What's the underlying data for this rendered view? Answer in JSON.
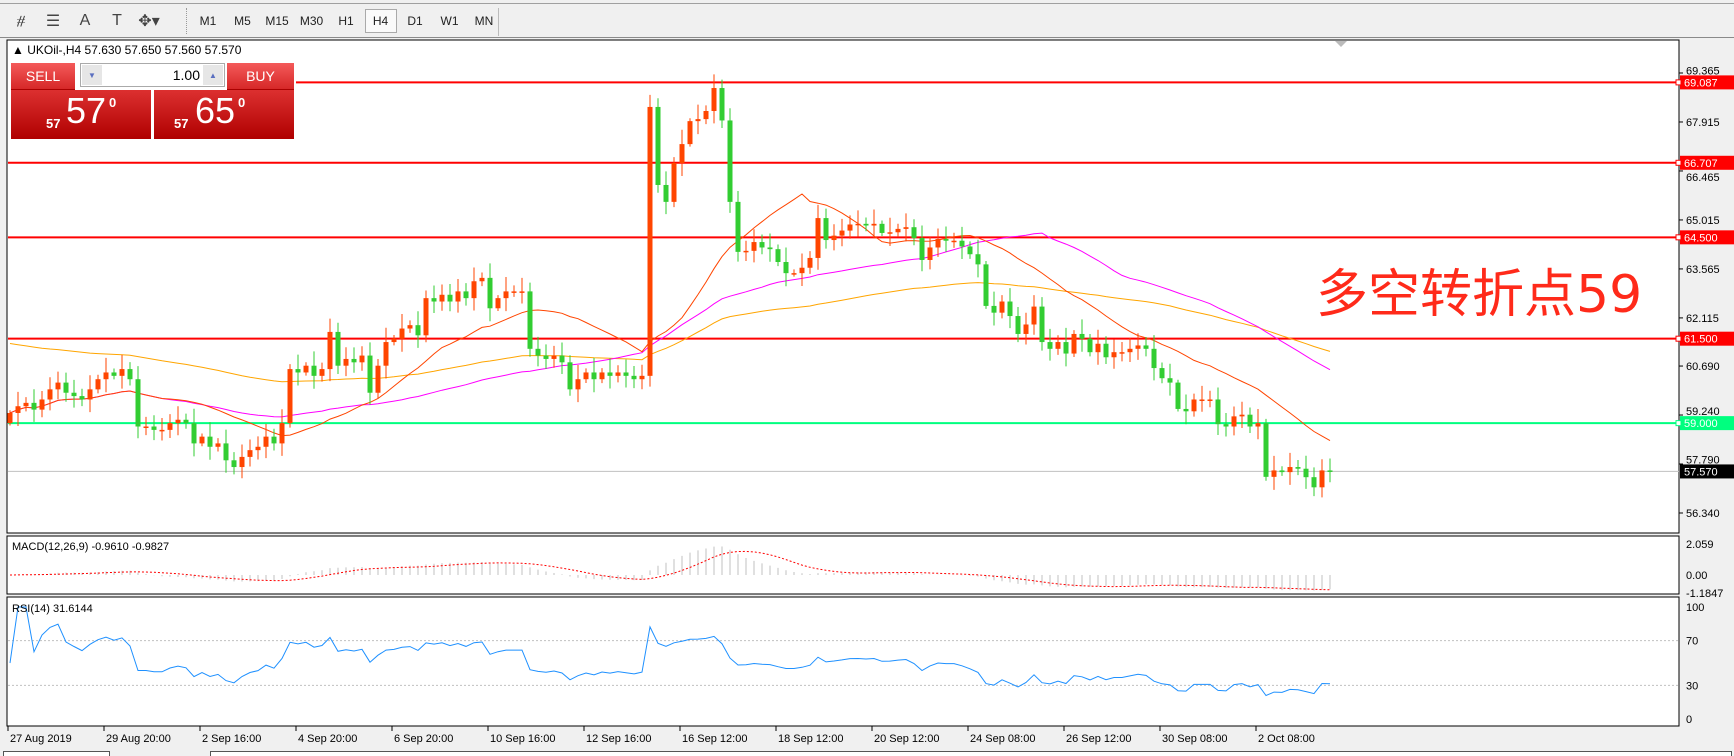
{
  "toolbar": {
    "tools": [
      {
        "name": "elliott-tools-icon",
        "glyph": "⧣"
      },
      {
        "name": "fibonacci-tools-icon",
        "glyph": "☰"
      },
      {
        "name": "text-tool-icon",
        "glyph": "A"
      },
      {
        "name": "text-label-tool-icon",
        "glyph": "T"
      },
      {
        "name": "arrows-tool-icon",
        "glyph": "✥▾"
      }
    ],
    "timeframes": [
      "M1",
      "M5",
      "M15",
      "M30",
      "H1",
      "H4",
      "D1",
      "W1",
      "MN"
    ],
    "active_timeframe": "H4"
  },
  "chart": {
    "header": "▲ UKOil-,H4  57.630 57.650 57.560 57.570",
    "trade_panel": {
      "sell_label": "SELL",
      "buy_label": "BUY",
      "volume": "1.00",
      "sell_price": {
        "prefix": "57",
        "big": "57",
        "sup": "0"
      },
      "buy_price": {
        "prefix": "57",
        "big": "65",
        "sup": "0"
      }
    },
    "annotation": "多空转折点59",
    "price_axis_ticks": [
      "69.365",
      "67.915",
      "66.465",
      "65.015",
      "63.565",
      "62.115",
      "60.690",
      "59.240",
      "57.790",
      "56.340"
    ],
    "levels": [
      {
        "value": "69.087",
        "color": "#ff0000"
      },
      {
        "value": "66.707",
        "color": "#ff0000"
      },
      {
        "value": "64.500",
        "color": "#ff0000"
      },
      {
        "value": "61.500",
        "color": "#ff0000"
      },
      {
        "value": "59.000",
        "color": "#00ff7f"
      }
    ],
    "bid_label": "57.570",
    "time_labels": [
      "27 Aug 2019",
      "29 Aug 20:00",
      "2 Sep 16:00",
      "4 Sep 20:00",
      "6 Sep 20:00",
      "10 Sep 16:00",
      "12 Sep 16:00",
      "16 Sep 12:00",
      "18 Sep 12:00",
      "20 Sep 12:00",
      "24 Sep 08:00",
      "26 Sep 12:00",
      "30 Sep 08:00",
      "2 Oct 08:00"
    ],
    "colors": {
      "bull": "#ff4500",
      "bear": "#32cd32",
      "ma_fast": "#ff4500",
      "ma_mid": "#ff00ff",
      "ma_slow": "#ffa500",
      "rsi": "#1e90ff",
      "macd_signal": "#ff0000",
      "macd_hist": "#c0c0c0"
    }
  },
  "macd": {
    "label": "MACD(12,26,9) -0.9610 -0.9827",
    "axis": [
      "2.059",
      "0.00",
      "-1.1847"
    ]
  },
  "rsi": {
    "label": "RSI(14) 31.6144",
    "axis": [
      "100",
      "70",
      "30",
      "0"
    ]
  },
  "chart_data": {
    "type": "candlestick",
    "symbol": "UKOil-",
    "timeframe": "H4",
    "closes": [
      59.3,
      59.5,
      59.6,
      59.4,
      59.7,
      60.0,
      60.2,
      59.9,
      59.8,
      59.7,
      60.0,
      60.3,
      60.5,
      60.4,
      60.6,
      60.3,
      58.9,
      58.9,
      58.8,
      58.8,
      59.0,
      59.1,
      59.0,
      58.4,
      58.6,
      58.3,
      58.4,
      57.9,
      57.7,
      58.0,
      58.2,
      58.3,
      58.6,
      58.4,
      59.0,
      60.6,
      60.5,
      60.7,
      60.4,
      60.6,
      61.7,
      60.7,
      60.9,
      60.8,
      61.0,
      59.9,
      60.7,
      61.4,
      61.5,
      61.8,
      61.9,
      61.6,
      62.7,
      62.6,
      62.8,
      62.6,
      62.9,
      62.7,
      63.2,
      63.3,
      62.4,
      62.7,
      62.9,
      62.9,
      62.9,
      61.2,
      61.0,
      60.9,
      61.0,
      60.8,
      60.0,
      60.3,
      60.5,
      60.3,
      60.5,
      60.4,
      60.5,
      60.4,
      60.3,
      60.4,
      68.36,
      66.05,
      65.55,
      66.7,
      67.26,
      67.94,
      68.0,
      68.24,
      68.92,
      67.96,
      65.55,
      64.07,
      64.1,
      64.36,
      64.2,
      64.15,
      63.77,
      63.44,
      63.44,
      63.6,
      63.89,
      65.07,
      64.42,
      64.55,
      64.7,
      64.88,
      64.9,
      64.85,
      64.9,
      64.63,
      64.65,
      64.75,
      64.8,
      64.48,
      63.83,
      64.2,
      64.45,
      64.4,
      64.4,
      64.23,
      64.0,
      63.7,
      62.47,
      62.27,
      62.6,
      62.17,
      61.64,
      61.92,
      62.45,
      61.4,
      61.2,
      61.4,
      61.06,
      61.64,
      61.5,
      61.1,
      61.35,
      60.95,
      61.1,
      61.1,
      61.2,
      61.3,
      61.2,
      60.63,
      60.33,
      60.2,
      59.42,
      59.35,
      59.7,
      59.7,
      59.7,
      58.97,
      58.9,
      59.2,
      59.25,
      58.9,
      59.0,
      57.41,
      57.6,
      57.55,
      57.7,
      57.65,
      57.4,
      57.1,
      57.6,
      57.57
    ],
    "last_ohlc": {
      "open": 57.63,
      "high": 57.65,
      "low": 57.56,
      "close": 57.57
    },
    "price_range": [
      56.0,
      69.8
    ],
    "macd_range": [
      -1.1847,
      2.059
    ],
    "rsi_levels": [
      30,
      70
    ]
  }
}
